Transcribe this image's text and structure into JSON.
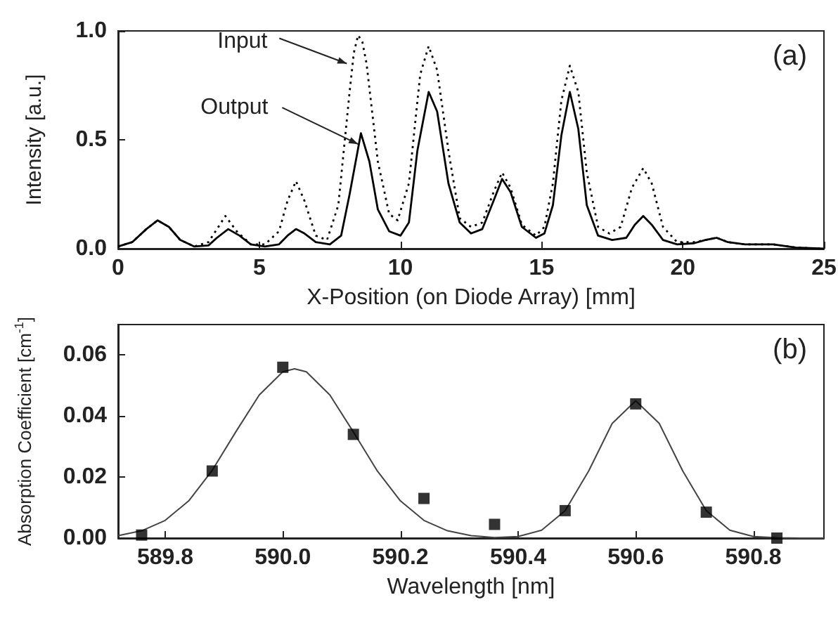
{
  "chart_data": [
    {
      "type": "line",
      "xlabel": "X-Position (on Diode Array) [mm]",
      "ylabel": "Intensity [a.u.]",
      "xlim": [
        0,
        25
      ],
      "ylim": [
        0,
        1.0
      ],
      "xticks": [
        0,
        5,
        10,
        15,
        20,
        25
      ],
      "yticks": [
        {
          "value": 0,
          "label": "0.0"
        },
        {
          "value": 0.5,
          "label": "0.5"
        },
        {
          "value": 1.0,
          "label": "1.0"
        }
      ],
      "grid": false,
      "annotations": [
        "(a)",
        {
          "text": "Input",
          "x": 8.1,
          "y": 0.85
        },
        {
          "text": "Output",
          "x": 8.5,
          "y": 0.48
        }
      ],
      "series": [
        {
          "color": "#000000",
          "line_style": "dotted",
          "marker": "none",
          "x": [
            0,
            0.5,
            1.0,
            1.4,
            1.8,
            2.2,
            2.7,
            3.2,
            3.5,
            3.8,
            4.2,
            4.7,
            5.2,
            5.7,
            6.0,
            6.3,
            6.6,
            7.0,
            7.4,
            7.8,
            8.2,
            8.35,
            8.5,
            8.65,
            8.8,
            9.2,
            9.6,
            9.9,
            10.3,
            10.7,
            11.0,
            11.3,
            11.7,
            12.1,
            12.5,
            12.9,
            13.3,
            13.6,
            13.9,
            14.3,
            14.8,
            15.1,
            15.4,
            15.7,
            16.0,
            16.3,
            16.6,
            17.0,
            17.4,
            17.8,
            18.2,
            18.6,
            18.9,
            19.3,
            19.8,
            20.4,
            20.8,
            21.2,
            21.6,
            22.2,
            23.2,
            24.0,
            25
          ],
          "values": [
            0.01,
            0.03,
            0.09,
            0.13,
            0.1,
            0.04,
            0.01,
            0.03,
            0.09,
            0.15,
            0.08,
            0.02,
            0.02,
            0.08,
            0.22,
            0.31,
            0.22,
            0.06,
            0.04,
            0.2,
            0.72,
            0.9,
            0.98,
            0.95,
            0.85,
            0.4,
            0.16,
            0.13,
            0.3,
            0.8,
            0.93,
            0.82,
            0.45,
            0.14,
            0.1,
            0.12,
            0.26,
            0.35,
            0.28,
            0.11,
            0.06,
            0.1,
            0.3,
            0.68,
            0.84,
            0.72,
            0.35,
            0.1,
            0.07,
            0.1,
            0.28,
            0.37,
            0.3,
            0.1,
            0.03,
            0.03,
            0.04,
            0.05,
            0.03,
            0.02,
            0.02,
            0.005,
            0
          ]
        },
        {
          "color": "#000000",
          "line_style": "solid",
          "marker": "none",
          "x": [
            0,
            0.5,
            1.0,
            1.4,
            1.8,
            2.2,
            2.7,
            3.2,
            3.5,
            3.9,
            4.3,
            4.7,
            5.2,
            5.7,
            6.0,
            6.3,
            6.6,
            7.0,
            7.5,
            7.9,
            8.2,
            8.6,
            8.9,
            9.2,
            9.6,
            10.0,
            10.3,
            10.6,
            11.0,
            11.3,
            11.7,
            12.1,
            12.5,
            12.9,
            13.3,
            13.6,
            13.9,
            14.3,
            14.8,
            15.1,
            15.4,
            15.7,
            16.0,
            16.3,
            16.6,
            17.0,
            17.5,
            18.0,
            18.3,
            18.6,
            18.9,
            19.3,
            19.8,
            20.4,
            20.8,
            21.2,
            21.6,
            22.2,
            23.2,
            24.0,
            25
          ],
          "values": [
            0.01,
            0.03,
            0.09,
            0.13,
            0.1,
            0.04,
            0.01,
            0.015,
            0.05,
            0.09,
            0.06,
            0.02,
            0.01,
            0.02,
            0.06,
            0.09,
            0.07,
            0.03,
            0.02,
            0.06,
            0.25,
            0.53,
            0.4,
            0.18,
            0.08,
            0.06,
            0.12,
            0.45,
            0.72,
            0.63,
            0.3,
            0.12,
            0.07,
            0.09,
            0.22,
            0.32,
            0.26,
            0.1,
            0.05,
            0.07,
            0.2,
            0.52,
            0.72,
            0.55,
            0.2,
            0.06,
            0.04,
            0.05,
            0.11,
            0.15,
            0.11,
            0.04,
            0.02,
            0.025,
            0.04,
            0.05,
            0.03,
            0.02,
            0.02,
            0.005,
            0
          ]
        }
      ]
    },
    {
      "type": "scatter",
      "xlabel": "Wavelength [nm]",
      "ylabel": "Absorption Coefficient [cm$^{-1}$]",
      "xlim": [
        589.72,
        590.92
      ],
      "ylim": [
        0,
        0.07
      ],
      "xticks": [
        589.8,
        {
          "value": 590.0,
          "label": "590.0"
        },
        590.2,
        590.4,
        590.6,
        590.8
      ],
      "yticks": [
        {
          "value": 0,
          "label": "0.00"
        },
        {
          "value": 0.02,
          "label": "0.02"
        },
        {
          "value": 0.04,
          "label": "0.04"
        },
        {
          "value": 0.06,
          "label": "0.06"
        }
      ],
      "grid": false,
      "annotations": [
        "(b)"
      ],
      "series": [
        {
          "type": "scatter",
          "color": "#000000",
          "marker": "square",
          "x": [
            589.76,
            589.88,
            590.0,
            590.12,
            590.24,
            590.36,
            590.48,
            590.6,
            590.72,
            590.84
          ],
          "values": [
            0.001,
            0.022,
            0.056,
            0.034,
            0.013,
            0.0045,
            0.009,
            0.044,
            0.0085,
            0.0
          ]
        },
        {
          "type": "line",
          "color": "#444444",
          "line_style": "solid",
          "marker": "none",
          "x": [
            589.72,
            589.76,
            589.8,
            589.84,
            589.88,
            589.92,
            589.96,
            590.0,
            590.02,
            590.04,
            590.08,
            590.12,
            590.16,
            590.2,
            590.24,
            590.28,
            590.32,
            590.36,
            590.4,
            590.44,
            590.48,
            590.52,
            590.56,
            590.6,
            590.64,
            590.68,
            590.72,
            590.76,
            590.8,
            590.84,
            590.88,
            590.92
          ],
          "values": [
            0.0008,
            0.0024,
            0.0058,
            0.0122,
            0.0222,
            0.0348,
            0.0469,
            0.0545,
            0.0555,
            0.0545,
            0.0469,
            0.0348,
            0.0222,
            0.0122,
            0.0058,
            0.0024,
            0.0008,
            0.0002,
            0.0005,
            0.0026,
            0.009,
            0.022,
            0.0376,
            0.045,
            0.0376,
            0.022,
            0.009,
            0.0026,
            0.0005,
            0.0001,
            0,
            0
          ]
        }
      ]
    }
  ]
}
